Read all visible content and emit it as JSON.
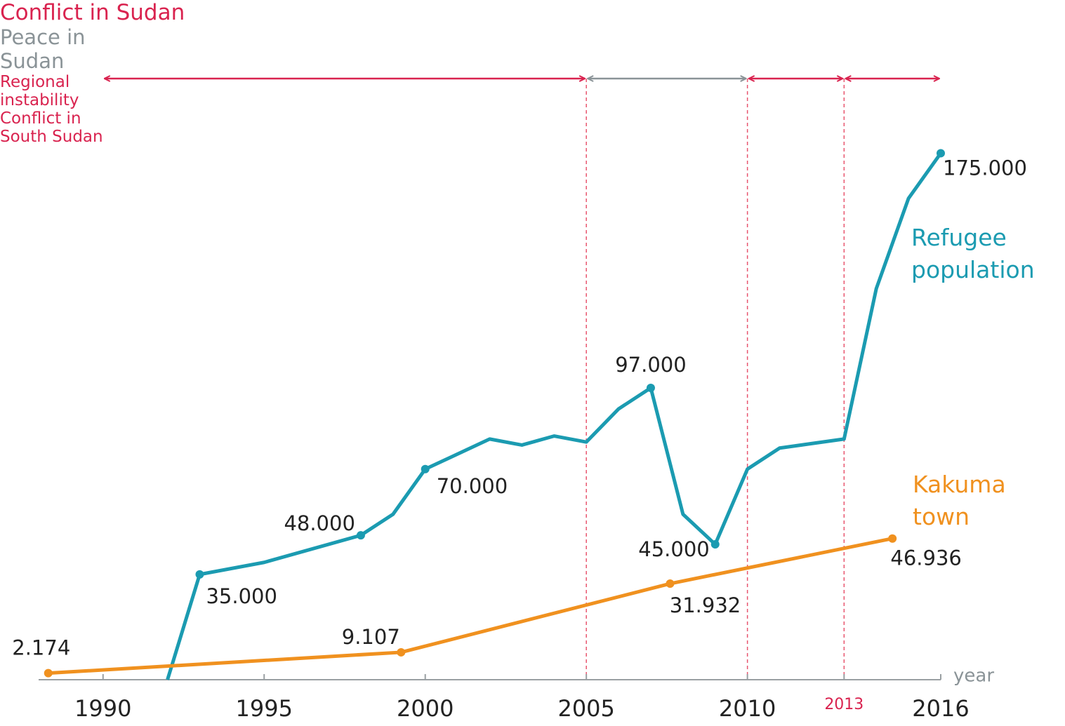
{
  "chart_data": {
    "type": "line",
    "x_label": "year",
    "xlim": [
      1988,
      2016
    ],
    "xticks": [
      1990,
      1995,
      2000,
      2005,
      2010,
      2013,
      2016
    ],
    "xtick_highlight": 2013,
    "ylim": [
      0,
      180000
    ],
    "series": [
      {
        "name": "Refugee population",
        "color": "#1b9bb1",
        "x": [
          1992,
          1993,
          1995,
          1998,
          1999,
          2000,
          2002,
          2003,
          2004,
          2005,
          2006,
          2007,
          2008,
          2009,
          2010,
          2011,
          2013,
          2014,
          2015,
          2016
        ],
        "values": [
          0,
          35000,
          39000,
          48000,
          55000,
          70000,
          80000,
          78000,
          81000,
          79000,
          90000,
          97000,
          55000,
          45000,
          70000,
          77000,
          80000,
          130000,
          160000,
          175000
        ],
        "value_labels": [
          null,
          "35.000",
          null,
          "48.000",
          null,
          "70.000",
          null,
          null,
          null,
          null,
          null,
          "97.000",
          null,
          "45.000",
          null,
          null,
          null,
          null,
          null,
          "175.000"
        ]
      },
      {
        "name": "Kakuma town",
        "color": "#f0911f",
        "x": [
          1988.3,
          1999.25,
          2007.6,
          2014.5
        ],
        "values": [
          2174,
          9107,
          31932,
          46936
        ],
        "value_labels": [
          "2.174",
          "9.107",
          "31.932",
          "46.936"
        ]
      }
    ],
    "periods": [
      {
        "label": "Conflict in Sudan",
        "start": 1990,
        "end": 2005,
        "color": "#d9234f"
      },
      {
        "label": "Peace in Sudan",
        "start": 2005,
        "end": 2010,
        "color": "#8a9397"
      },
      {
        "label": "Regional instability",
        "start": 2010,
        "end": 2013,
        "color": "#d9234f"
      },
      {
        "label": "Conflict in South Sudan",
        "start": 2013,
        "end": 2016,
        "color": "#d9234f"
      }
    ]
  }
}
